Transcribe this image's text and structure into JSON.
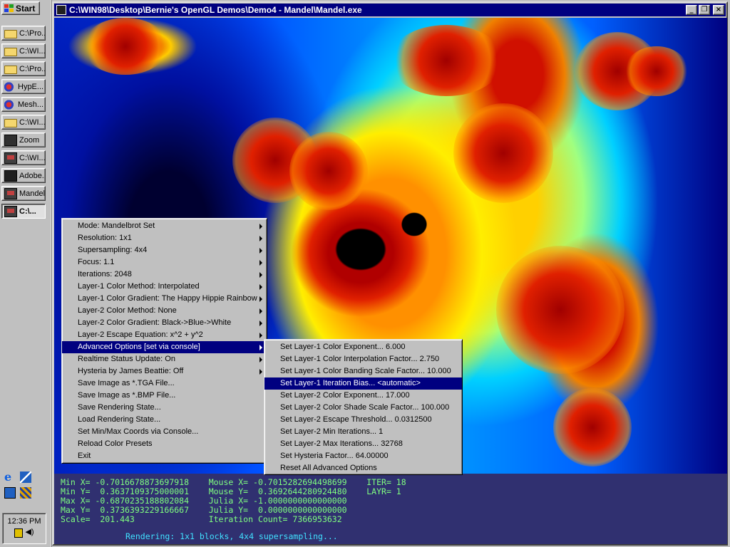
{
  "taskbar": {
    "start_label": "Start",
    "buttons": [
      {
        "label": "C:\\Pro...",
        "icon": "folder-icon"
      },
      {
        "label": "C:\\WI...",
        "icon": "folder-icon"
      },
      {
        "label": "C:\\Pro...",
        "icon": "folder-icon"
      },
      {
        "label": "HypE...",
        "icon": "hyperbolic-app-icon"
      },
      {
        "label": "Mesh...",
        "icon": "mesh-app-icon"
      },
      {
        "label": "C:\\WI...",
        "icon": "folder-icon"
      },
      {
        "label": "Zoom",
        "icon": "zoom-app-icon"
      },
      {
        "label": "C:\\WI...",
        "icon": "dos-window-icon"
      },
      {
        "label": "Adobe...",
        "icon": "adobe-app-icon"
      },
      {
        "label": "Mandel",
        "icon": "mandel-app-icon"
      },
      {
        "label": "C:\\...",
        "icon": "dos-window-icon"
      }
    ],
    "clock": "12:36 PM"
  },
  "window": {
    "title": "C:\\WIN98\\Desktop\\Bernie's OpenGL Demos\\Demo4 - Mandel\\Mandel.exe",
    "minimize_glyph": "_",
    "maximize_glyph": "❐",
    "close_glyph": "×"
  },
  "context_menu": {
    "items": [
      {
        "label": "Mode: Mandelbrot Set",
        "submenu": true
      },
      {
        "label": "Resolution: 1x1",
        "submenu": true
      },
      {
        "label": "Supersampling: 4x4",
        "submenu": true
      },
      {
        "label": "Focus: 1.1",
        "submenu": true
      },
      {
        "label": "Iterations: 2048",
        "submenu": true
      },
      {
        "label": "Layer-1 Color Method: Interpolated",
        "submenu": true
      },
      {
        "label": "Layer-1 Color Gradient: The Happy Hippie Rainbow",
        "submenu": true
      },
      {
        "label": "Layer-2 Color Method: None",
        "submenu": true
      },
      {
        "label": "Layer-2 Color Gradient: Black->Blue->White",
        "submenu": true
      },
      {
        "label": "Layer-2 Escape Equation: x^2 + y^2",
        "submenu": true
      },
      {
        "label": "Advanced Options [set via console]",
        "submenu": true,
        "highlighted": true
      },
      {
        "label": "Realtime Status Update: On",
        "submenu": true
      },
      {
        "label": "Hysteria by James Beattie: Off",
        "submenu": true
      },
      {
        "label": "Save Image as *.TGA File...",
        "submenu": false
      },
      {
        "label": "Save Image as *.BMP File...",
        "submenu": false
      },
      {
        "label": "Save Rendering State...",
        "submenu": false
      },
      {
        "label": "Load Rendering State...",
        "submenu": false
      },
      {
        "label": "Set Min/Max Coords via Console...",
        "submenu": false
      },
      {
        "label": "Reload Color Presets",
        "submenu": false
      },
      {
        "label": "Exit",
        "submenu": false
      }
    ]
  },
  "advanced_submenu": {
    "items": [
      {
        "label": "Set Layer-1 Color Exponent... 6.000"
      },
      {
        "label": "Set Layer-1 Color Interpolation Factor... 2.750"
      },
      {
        "label": "Set Layer-1 Color Banding Scale Factor... 10.000"
      },
      {
        "label": "Set Layer-1 Iteration Bias... <automatic>",
        "highlighted": true
      },
      {
        "label": "Set Layer-2 Color Exponent... 17.000"
      },
      {
        "label": "Set Layer-2 Color Shade Scale Factor... 100.000"
      },
      {
        "label": "Set Layer-2 Escape Threshold... 0.0312500"
      },
      {
        "label": "Set Layer-2 Min Iterations... 1"
      },
      {
        "label": "Set Layer-2 Max Iterations... 32768"
      },
      {
        "label": "Set Hysteria Factor... 64.00000"
      },
      {
        "label": "Reset All Advanced Options"
      }
    ]
  },
  "console": {
    "lines": [
      "Min X= -0.7016678873697918    Mouse X= -0.7015282694498699    ITER= 18",
      "Min Y=  0.3637109375000001    Mouse Y=  0.3692644280924480    LAYR= 1",
      "Max X= -0.6870235188802084    Julia X= -1.0000000000000000",
      "Max Y=  0.3736393229166667    Julia Y=  0.0000000000000000",
      "Scale=  201.443               Iteration Count= 7366953632"
    ],
    "status": "Rendering: 1x1 blocks, 4x4 supersampling..."
  }
}
